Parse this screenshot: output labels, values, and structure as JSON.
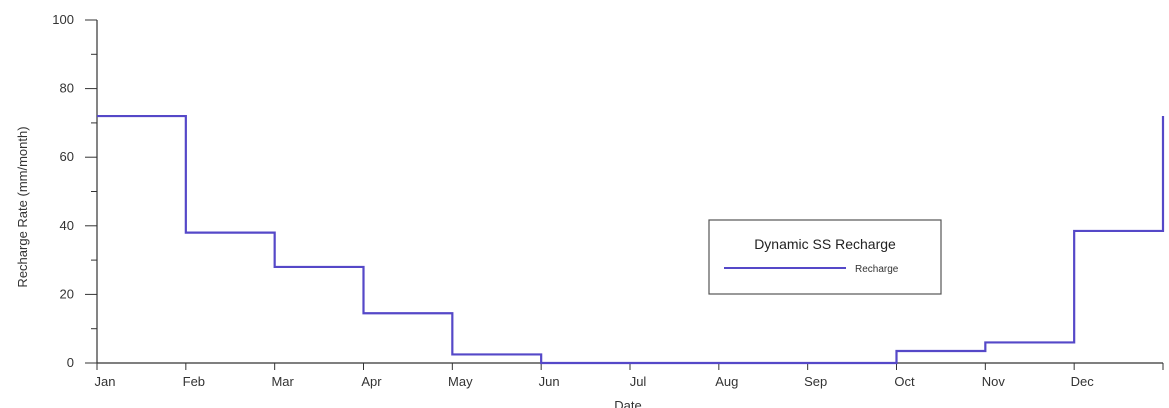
{
  "chart_data": {
    "type": "line",
    "step": true,
    "xlabel": "Date",
    "ylabel": "Recharge Rate (mm/month)",
    "categories": [
      "Jan",
      "Feb",
      "Mar",
      "Apr",
      "May",
      "Jun",
      "Jul",
      "Aug",
      "Sep",
      "Oct",
      "Nov",
      "Dec"
    ],
    "ylim": [
      0,
      100
    ],
    "yticks": [
      0,
      20,
      40,
      60,
      80,
      100
    ],
    "grid": false,
    "legend": {
      "title": "Dynamic SS Recharge",
      "placement": "center-right"
    },
    "series": [
      {
        "name": "Recharge",
        "color": "#5548c8",
        "values": [
          72,
          38,
          28,
          14.5,
          2.5,
          0,
          0,
          0,
          0,
          3.5,
          6,
          38.5
        ],
        "end_value": 72
      }
    ]
  }
}
